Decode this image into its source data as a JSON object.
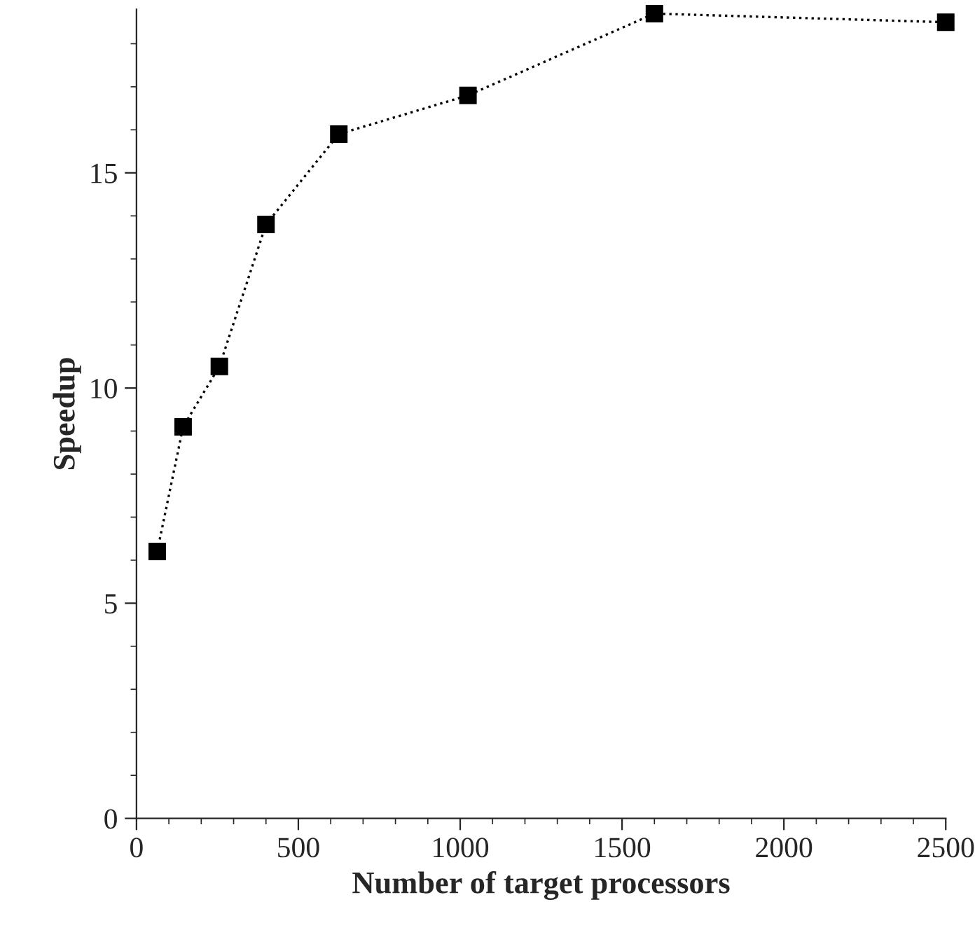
{
  "chart_data": {
    "type": "line",
    "xlabel": "Number of target processors",
    "ylabel": "Speedup",
    "x": [
      64,
      144,
      256,
      400,
      625,
      1024,
      1600,
      2500
    ],
    "series": [
      {
        "color": "#000000",
        "values": [
          6.2,
          9.1,
          10.5,
          13.8,
          15.9,
          16.8,
          18.7,
          18.5
        ]
      }
    ],
    "marker": "square",
    "line_style": "dotted",
    "xlim": [
      0,
      2500
    ],
    "xticks": [
      0,
      500,
      1000,
      1500,
      2000,
      2500
    ],
    "ylim": [
      0,
      18.8
    ],
    "yticks": [
      0,
      5,
      10,
      15
    ],
    "grid": false,
    "legend": false
  }
}
